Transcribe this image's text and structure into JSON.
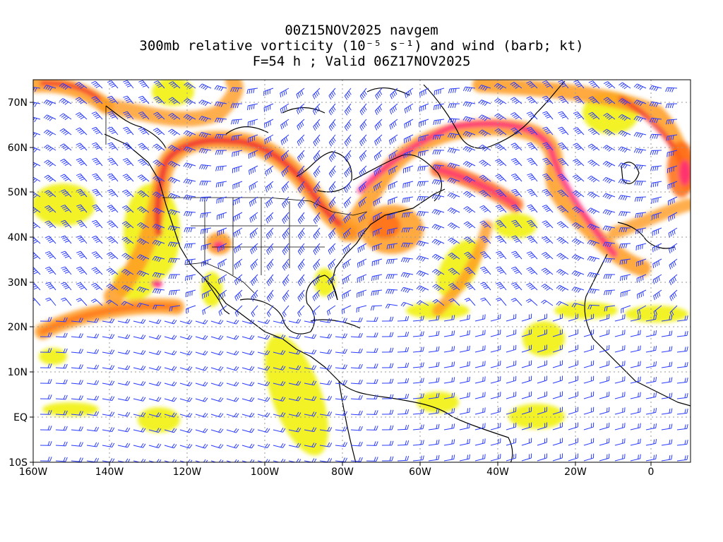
{
  "titles": {
    "line1": "00Z15NOV2025 navgem",
    "line2": "300mb relative vorticity (10⁻⁵ s⁻¹) and wind (barb; kt)",
    "line3": "F=54 h ; Valid 06Z17NOV2025"
  },
  "lat_labels": [
    "70N",
    "60N",
    "50N",
    "40N",
    "30N",
    "20N",
    "10N",
    "EQ",
    "10S"
  ],
  "lon_labels": [
    "160W",
    "140W",
    "120W",
    "100W",
    "80W",
    "60W",
    "40W",
    "20W",
    "0"
  ],
  "colors": {
    "vort_light": "#f0f000",
    "vort_yellow": "#ffe033",
    "vort_orange": "#ff9a20",
    "vort_deep_orange": "#ff6a10",
    "vort_red": "#f03030",
    "vort_magenta": "#ff2a80",
    "wind_barb": "#2a3bff",
    "coastline": "#000000",
    "grid": "#999999"
  }
}
